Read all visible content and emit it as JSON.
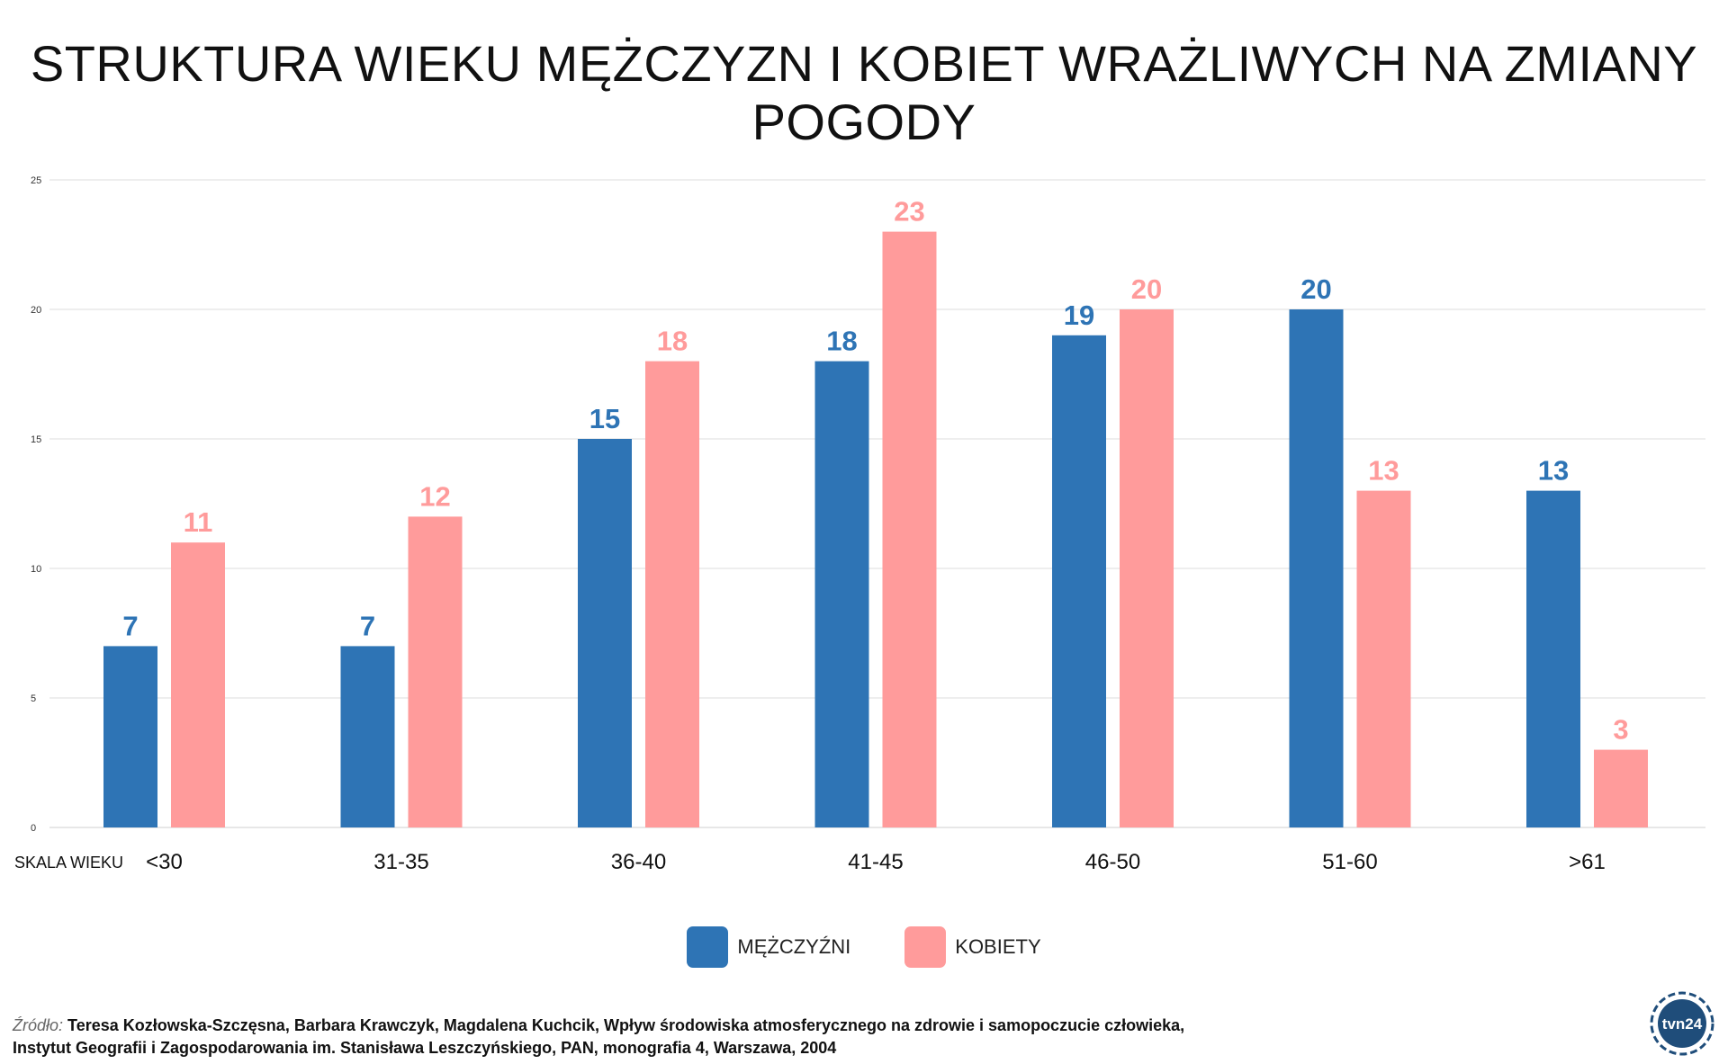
{
  "title": "STRUKTURA WIEKU MĘŻCZYZN I KOBIET WRAŻLIWYCH NA ZMIANY POGODY",
  "chart_data": {
    "type": "bar",
    "xlabel": "SKALA WIEKU",
    "ylabel": "",
    "ylim": [
      0,
      25
    ],
    "yticks": [
      0,
      5,
      10,
      15,
      20,
      25
    ],
    "grid": true,
    "legend_position": "bottom",
    "categories": [
      "<30",
      "31-35",
      "36-40",
      "41-45",
      "46-50",
      "51-60",
      ">61"
    ],
    "series": [
      {
        "name": "MĘŻCZYŹNI",
        "color": "#2e74b5",
        "values": [
          7,
          7,
          15,
          18,
          19,
          20,
          13
        ]
      },
      {
        "name": "KOBIETY",
        "color": "#ff9b9b",
        "values": [
          11,
          12,
          18,
          23,
          20,
          13,
          3
        ]
      }
    ]
  },
  "source": {
    "label": "Źródło:",
    "line1": "Teresa Kozłowska-Szczęsna, Barbara Krawczyk, Magdalena Kuchcik, Wpływ środowiska atmosferycznego na zdrowie i samopoczucie człowieka,",
    "line2": "Instytut Geografii i Zagospodarowania im. Stanisława Leszczyńskiego, PAN, monografia 4, Warszawa, 2004"
  },
  "logo": {
    "text": "tvn24",
    "icon": "tvn24-logo-icon",
    "color": "#1f4d7a"
  }
}
